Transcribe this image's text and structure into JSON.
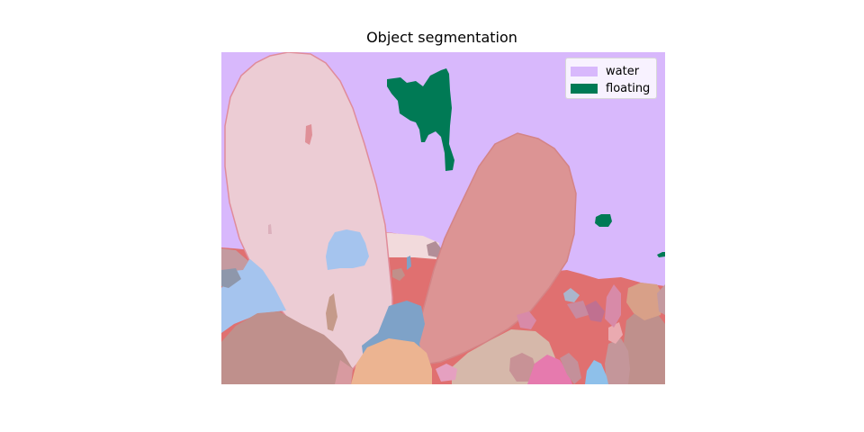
{
  "figure": {
    "title": "Object segmentation"
  },
  "legend": {
    "items": [
      {
        "label": "water",
        "color": "#d8b8fc"
      },
      {
        "label": "floating",
        "color": "#007a55"
      }
    ]
  },
  "colors": {
    "background_red": "#e07070",
    "left_petal": "#ecccd4",
    "right_petal": "#dc9494",
    "blue": "#a5c4ee",
    "mauve": "#bf908c",
    "orange": "#ecb491",
    "pink": "#e67aae",
    "tan": "#d6b8aa"
  }
}
